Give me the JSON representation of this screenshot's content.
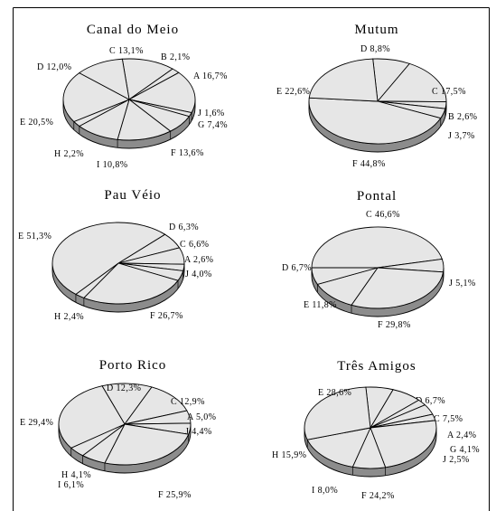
{
  "chart_data": [
    {
      "type": "pie",
      "title": "Canal do Meio",
      "slices": [
        {
          "category": "C",
          "text": "13,1%",
          "value": 13.1
        },
        {
          "category": "B",
          "text": "2,1%",
          "value": 2.1
        },
        {
          "category": "A",
          "text": "16,7%",
          "value": 16.7
        },
        {
          "category": "J",
          "text": "1,6%",
          "value": 1.6
        },
        {
          "category": "G",
          "text": "7,4%",
          "value": 7.4
        },
        {
          "category": "F",
          "text": "13,6%",
          "value": 13.6
        },
        {
          "category": "I",
          "text": "10,8%",
          "value": 10.8
        },
        {
          "category": "H",
          "text": "2,2%",
          "value": 2.2
        },
        {
          "category": "E",
          "text": "20,5%",
          "value": 20.5
        },
        {
          "category": "D",
          "text": "12,0%",
          "value": 12.0
        }
      ]
    },
    {
      "type": "pie",
      "title": "Mutum",
      "slices": [
        {
          "category": "D",
          "text": "8,8%",
          "value": 8.8
        },
        {
          "category": "C",
          "text": "17,5%",
          "value": 17.5
        },
        {
          "category": "B",
          "text": "2,6%",
          "value": 2.6
        },
        {
          "category": "J",
          "text": "3,7%",
          "value": 3.7
        },
        {
          "category": "F",
          "text": "44,8%",
          "value": 44.8
        },
        {
          "category": "E",
          "text": "22,6%",
          "value": 22.6
        }
      ]
    },
    {
      "type": "pie",
      "title": "Pau Véio",
      "slices": [
        {
          "category": "D",
          "text": "6,3%",
          "value": 6.3
        },
        {
          "category": "C",
          "text": "6,6%",
          "value": 6.6
        },
        {
          "category": "A",
          "text": "2,6%",
          "value": 2.6
        },
        {
          "category": "J",
          "text": "4,0%",
          "value": 4.0
        },
        {
          "category": "F",
          "text": "26,7%",
          "value": 26.7
        },
        {
          "category": "H",
          "text": "2,4%",
          "value": 2.4
        },
        {
          "category": "E",
          "text": "51,3%",
          "value": 51.3
        }
      ]
    },
    {
      "type": "pie",
      "title": "Pontal",
      "slices": [
        {
          "category": "C",
          "text": "46,6%",
          "value": 46.6
        },
        {
          "category": "J",
          "text": "5,1%",
          "value": 5.1
        },
        {
          "category": "F",
          "text": "29,8%",
          "value": 29.8
        },
        {
          "category": "E",
          "text": "11,8%",
          "value": 11.8
        },
        {
          "category": "D",
          "text": "6,7%",
          "value": 6.7
        }
      ]
    },
    {
      "type": "pie",
      "title": "Porto Rico",
      "slices": [
        {
          "category": "D",
          "text": "12,3%",
          "value": 12.3
        },
        {
          "category": "C",
          "text": "12,9%",
          "value": 12.9
        },
        {
          "category": "A",
          "text": "5,0%",
          "value": 5.0
        },
        {
          "category": "J",
          "text": "4,4%",
          "value": 4.4
        },
        {
          "category": "F",
          "text": "25,9%",
          "value": 25.9
        },
        {
          "category": "I",
          "text": "6,1%",
          "value": 6.1
        },
        {
          "category": "H",
          "text": "4,1%",
          "value": 4.1
        },
        {
          "category": "E",
          "text": "29,4%",
          "value": 29.4
        }
      ]
    },
    {
      "type": "pie",
      "title": "Três Amigos",
      "slices": [
        {
          "category": "D",
          "text": "6,7%",
          "value": 6.7
        },
        {
          "category": "C",
          "text": "7,5%",
          "value": 7.5
        },
        {
          "category": "A",
          "text": "2,4%",
          "value": 2.4
        },
        {
          "category": "G",
          "text": "4,1%",
          "value": 4.1
        },
        {
          "category": "J",
          "text": "2,5%",
          "value": 2.5
        },
        {
          "category": "F",
          "text": "24,2%",
          "value": 24.2
        },
        {
          "category": "I",
          "text": "8,0%",
          "value": 8.0
        },
        {
          "category": "H",
          "text": "15,9%",
          "value": 15.9
        },
        {
          "category": "E",
          "text": "28,6%",
          "value": 28.6
        }
      ]
    }
  ]
}
